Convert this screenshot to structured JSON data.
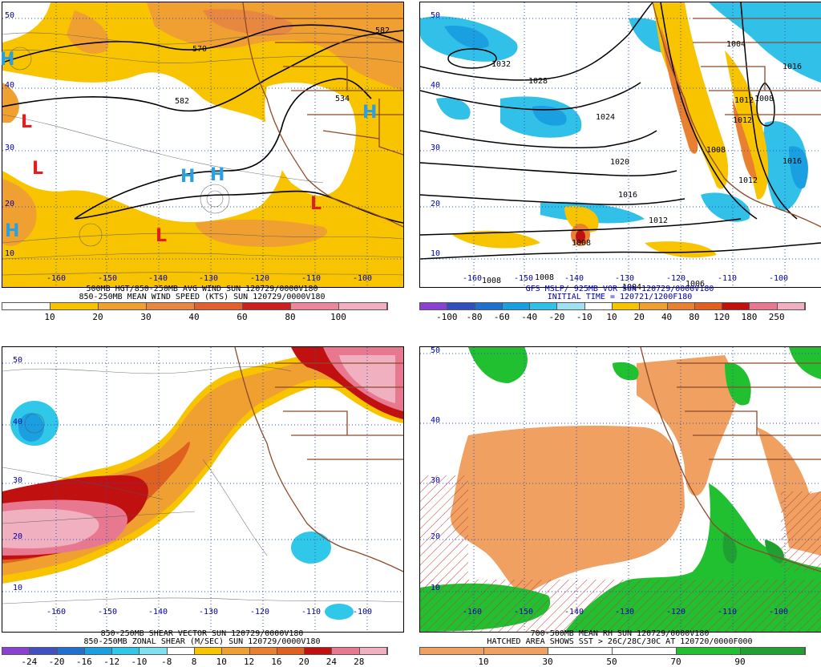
{
  "panels": [
    {
      "id": "wind",
      "title_line1": "500MB HGT/850-250MB AVG WIND SUN 120729/0000V180",
      "title_line2": "850-250MB MEAN WIND SPEED (KTS) SUN 120729/0000V180",
      "scale_labels": [
        "10",
        "20",
        "30",
        "40",
        "60",
        "80",
        "100"
      ],
      "scale_colors": [
        "#ffffff",
        "#f8c400",
        "#f0a030",
        "#e88840",
        "#e06030",
        "#cc2020",
        "#e88898",
        "#f0b0c0"
      ],
      "lat_labels": [
        "50",
        "40",
        "30",
        "20",
        "10"
      ],
      "lon_labels": [
        "-160",
        "-150",
        "-140",
        "-130",
        "-120",
        "-110",
        "-100"
      ],
      "contour_labels": [
        "570",
        "582",
        "582",
        "534"
      ],
      "centers": [
        "H",
        "L",
        "L",
        "H",
        "H",
        "L",
        "L",
        "H",
        "H"
      ]
    },
    {
      "id": "mslp",
      "title_line1": "GFS MSLP/ 925MB VOR SUN 120729/0000V180",
      "title_line2": "INITIAL TIME = 120721/1200F180",
      "scale_labels": [
        "-100",
        "-80",
        "-60",
        "-40",
        "-20",
        "-10",
        "10",
        "20",
        "40",
        "80",
        "120",
        "180",
        "250"
      ],
      "scale_colors": [
        "#8a40d0",
        "#3050c0",
        "#2070d0",
        "#1aa0e0",
        "#30c0e8",
        "#a0e0f0",
        "#ffffff",
        "#f8c400",
        "#f0a030",
        "#e88030",
        "#e06020",
        "#c01010",
        "#e87890",
        "#f0b0c0"
      ],
      "lat_labels": [
        "50",
        "40",
        "30",
        "20",
        "10"
      ],
      "lon_labels": [
        "-160",
        "-150",
        "-140",
        "-130",
        "-120",
        "-110",
        "-100"
      ],
      "contour_labels": [
        "1032",
        "1028",
        "1024",
        "1020",
        "1016",
        "1012",
        "1008",
        "1008",
        "1008",
        "1006",
        "1004",
        "1004",
        "1016",
        "1012",
        "1008",
        "1012",
        "1008",
        "1012",
        "1016"
      ]
    },
    {
      "id": "shear",
      "title_line1": "850-250MB SHEAR VECTOR SUN 120729/0000V180",
      "title_line2": "850-250MB ZONAL SHEAR (M/SEC) SUN 120729/0000V180",
      "scale_labels": [
        "-24",
        "-20",
        "-16",
        "-12",
        "-10",
        "-8",
        "8",
        "10",
        "12",
        "16",
        "20",
        "24",
        "28"
      ],
      "scale_colors": [
        "#8a40d0",
        "#4050c0",
        "#2070d0",
        "#1aa0e0",
        "#30c8e8",
        "#80e0f0",
        "#ffffff",
        "#f8c400",
        "#f0a030",
        "#e88030",
        "#e06020",
        "#c01010",
        "#e87890",
        "#f0b0c0"
      ],
      "lat_labels": [
        "50",
        "40",
        "30",
        "20",
        "10"
      ],
      "lon_labels": [
        "-160",
        "-150",
        "-140",
        "-130",
        "-120",
        "-110",
        "-100"
      ]
    },
    {
      "id": "rh",
      "title_line1": "700-500MB MEAN RH SUN 120729/0000V180",
      "title_line2": "HATCHED AREA SHOWS SST > 26C/28C/30C AT 120720/0000F000",
      "scale_labels": [
        "10",
        "30",
        "50",
        "70",
        "90"
      ],
      "scale_colors": [
        "#f0a060",
        "#f0a060",
        "#ffffff",
        "#ffffff",
        "#20c030",
        "#20a030"
      ],
      "lat_labels": [
        "50",
        "40",
        "30",
        "20",
        "10"
      ],
      "lon_labels": [
        "-160",
        "-150",
        "-140",
        "-130",
        "-120",
        "-110",
        "-100"
      ]
    }
  ]
}
